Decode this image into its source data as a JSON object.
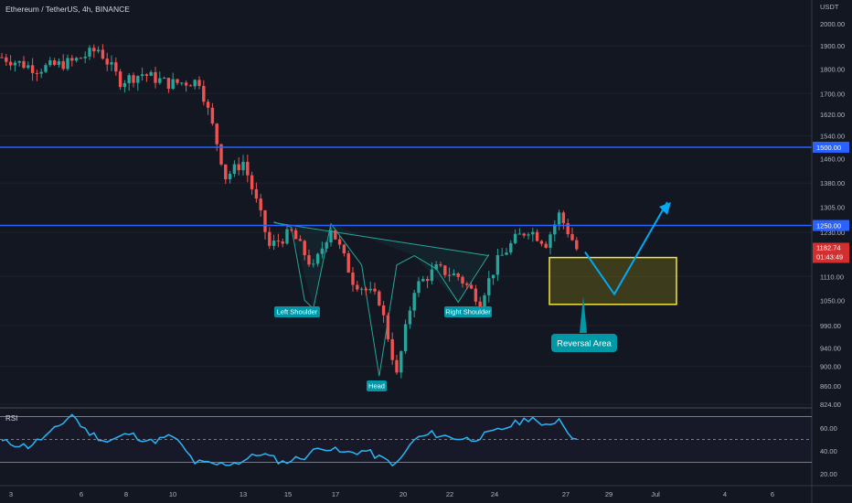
{
  "header": {
    "title": "Ethereum / TetherUS, 4h, BINANCE"
  },
  "price_axis": {
    "unit": "USDT",
    "ticks": [
      "2000.00",
      "1900.00",
      "1800.00",
      "1700.00",
      "1620.00",
      "1540.00",
      "1460.00",
      "1380.00",
      "1305.00",
      "1230.00",
      "1110.00",
      "1050.00",
      "990.00",
      "940.00",
      "900.00",
      "860.00",
      "824.00"
    ],
    "level_1500": "1500.00",
    "level_1250": "1250.00",
    "last_price": "1182.74",
    "countdown": "01:43:49"
  },
  "time_axis": {
    "ticks": [
      "3",
      "6",
      "8",
      "10",
      "13",
      "15",
      "17",
      "20",
      "22",
      "24",
      "27",
      "29",
      "Jul",
      "4",
      "6"
    ]
  },
  "rsi": {
    "label": "RSI",
    "ticks": [
      "60.00",
      "40.00",
      "20.00"
    ]
  },
  "annotations": {
    "left_shoulder": "Left Shoulder",
    "head": "Head",
    "right_shoulder": "Right Shoulder",
    "reversal_area": "Reversal Area"
  },
  "colors": {
    "background": "#131722",
    "up": "#26a69a",
    "down": "#ef5350",
    "level_line": "#2962ff",
    "rsi_line": "#29b6f6",
    "pattern": "#26a69a",
    "box_border": "#f5e642",
    "projection": "#03a9f4",
    "label_bg": "#0097a7"
  },
  "chart_data": {
    "type": "candlestick",
    "y_scale": "log",
    "ylim": [
      824,
      2050
    ],
    "horizontal_levels": [
      1500,
      1250
    ],
    "reversal_zone": [
      1040,
      1160
    ],
    "price_path": [
      [
        0,
        1850
      ],
      [
        8,
        1800
      ],
      [
        16,
        1830
      ],
      [
        22,
        1885
      ],
      [
        27,
        1750
      ],
      [
        32,
        1780
      ],
      [
        38,
        1740
      ],
      [
        45,
        1750
      ],
      [
        51,
        1400
      ],
      [
        55,
        1450
      ],
      [
        61,
        1190
      ],
      [
        66,
        1230
      ],
      [
        71,
        1130
      ],
      [
        75,
        1245
      ],
      [
        80,
        1100
      ],
      [
        86,
        1050
      ],
      [
        90,
        880
      ],
      [
        94,
        1080
      ],
      [
        99,
        1130
      ],
      [
        104,
        1110
      ],
      [
        109,
        1050
      ],
      [
        113,
        1150
      ],
      [
        117,
        1210
      ],
      [
        120,
        1240
      ],
      [
        124,
        1200
      ],
      [
        127,
        1282
      ],
      [
        131,
        1185
      ]
    ],
    "rsi_path": [
      [
        0,
        48
      ],
      [
        6,
        44
      ],
      [
        11,
        55
      ],
      [
        16,
        72
      ],
      [
        19,
        58
      ],
      [
        24,
        48
      ],
      [
        29,
        55
      ],
      [
        34,
        48
      ],
      [
        39,
        53
      ],
      [
        44,
        30
      ],
      [
        49,
        28
      ],
      [
        54,
        30
      ],
      [
        59,
        38
      ],
      [
        64,
        30
      ],
      [
        69,
        35
      ],
      [
        73,
        44
      ],
      [
        78,
        38
      ],
      [
        83,
        40
      ],
      [
        86,
        34
      ],
      [
        90,
        28
      ],
      [
        94,
        50
      ],
      [
        98,
        55
      ],
      [
        102,
        52
      ],
      [
        107,
        50
      ],
      [
        112,
        56
      ],
      [
        117,
        64
      ],
      [
        121,
        70
      ],
      [
        123,
        60
      ],
      [
        127,
        68
      ],
      [
        131,
        48
      ]
    ]
  }
}
